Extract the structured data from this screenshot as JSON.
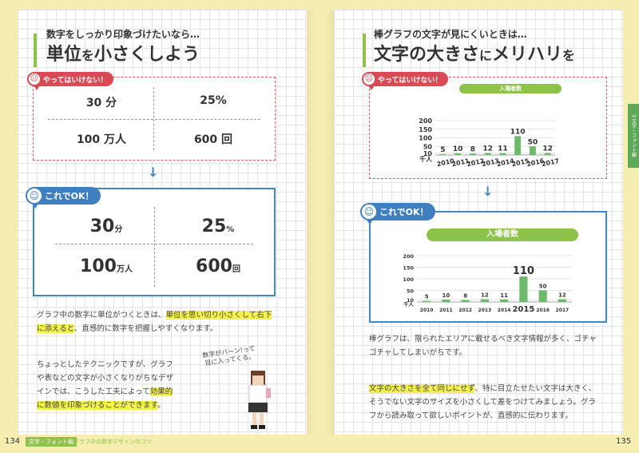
{
  "left": {
    "subtitle": "数字をしっかり印象づけたいなら…",
    "title_a": "単位",
    "title_b": "を",
    "title_c": "小さくしよう",
    "ng_label": "やってはいけない！",
    "ok_label": "これでOK！",
    "ng_cells": [
      {
        "num": "30",
        "unit": " 分"
      },
      {
        "num": "25",
        "unit": "%"
      },
      {
        "num": "100",
        "unit": " 万人"
      },
      {
        "num": "600",
        "unit": " 回"
      }
    ],
    "ok_cells": [
      {
        "num": "30",
        "unit": "分"
      },
      {
        "num": "25",
        "unit": "%"
      },
      {
        "num": "100",
        "unit": "万人"
      },
      {
        "num": "600",
        "unit": "回"
      }
    ],
    "arrow": "↓",
    "p1_a": "グラフ中の数字に単位がつくときは、",
    "p1_hl1": "単位を思い切り小さくして右下",
    "p1_hl2": "に添えると",
    "p1_b": "、直感的に数字を把握しやすくなります。",
    "p2_line1": "ちょっとしたテクニックですが、グラフ",
    "p2_line2": "や表などの文字が小さくなりがちなデザ",
    "p2_line3a": "インでは、こうした工夫によって",
    "p2_hl1": "効果的",
    "p2_hl2": "に数値を印象づけることができます",
    "p2_end": "。",
    "bubble_l1": "数字がバーン!って",
    "bubble_l2": "目に入ってくる。",
    "page_no": "134",
    "footer_tag": "文字・フォント編",
    "footer_text": "グラフ中の数字デザインのコツ"
  },
  "right": {
    "subtitle": "棒グラフの文字が見にくいときは…",
    "title_a": "文字の大きさ",
    "title_b": "に",
    "title_c": "メリハリ",
    "title_d": "を",
    "ng_label": "やってはいけない！",
    "ok_label": "これでOK！",
    "arrow": "↓",
    "p1_line1": "棒グラフは、限られたエリアに載せるべき文字情報が多く、ゴチャ",
    "p1_line2": "ゴチャしてしまいがちです。",
    "p2_hl": "文字の大きさを全て同じにせず",
    "p2_a": "、特に目立たせたい文字は大きく、",
    "p2_line2": "そうでない文字のサイズを小さくして差をつけてみましょう。グラ",
    "p2_line3": "フから読み取って欲しいポイントが、直感的に伝わります。",
    "page_no": "135",
    "side_tab": "3 文字・フォント編"
  },
  "chart_data": [
    {
      "type": "bar",
      "title": "入場者数",
      "categories": [
        "2010",
        "2011",
        "2012",
        "2013",
        "2014",
        "2015",
        "2016",
        "2017"
      ],
      "values": [
        5,
        10,
        8,
        12,
        11,
        110,
        50,
        12
      ],
      "value_labels": [
        "5",
        "10",
        "8",
        "12",
        "11",
        "110",
        "50",
        "12"
      ],
      "ylabel": "千人",
      "y_ticks": [
        "10",
        "50",
        "100",
        "150",
        "200"
      ],
      "color": "#6db86a"
    },
    {
      "type": "bar",
      "title": "入場者数",
      "categories": [
        "2010",
        "2011",
        "2012",
        "2013",
        "2014",
        "2015",
        "2016",
        "2017"
      ],
      "values": [
        5,
        10,
        8,
        12,
        11,
        110,
        50,
        12
      ],
      "value_labels": [
        "5",
        "10",
        "8",
        "12",
        "11",
        "110",
        "50",
        "12"
      ],
      "ylabel": "千人",
      "y_ticks": [
        "10",
        "50",
        "100",
        "150",
        "200"
      ],
      "highlight_category": "2015",
      "color": "#6db86a"
    }
  ],
  "colors": {
    "accent_green": "#8dc34a",
    "ng_red": "#d94a55",
    "ok_blue": "#3f7fc0",
    "highlight": "#f4f24a"
  }
}
